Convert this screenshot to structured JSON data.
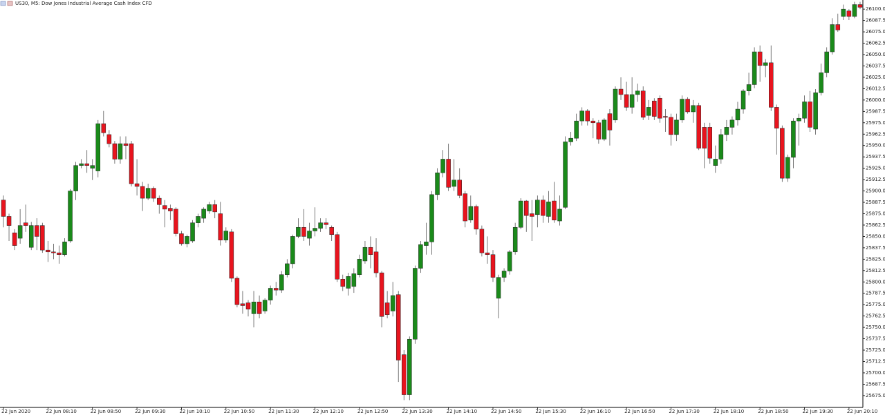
{
  "chart_data": {
    "type": "candlestick",
    "title": "US30, M5: Dow Jones Industrial Average Cash Index CFD",
    "up_color": "#1a8a1a",
    "down_color": "#e8141e",
    "wick_color": "#555555",
    "ylim": [
      25662,
      26110
    ],
    "yticks": [
      {
        "value": 25675,
        "label": "25675.0"
      },
      25687.5,
      {
        "value": 25700,
        "label": "25700.0"
      },
      25712.5,
      {
        "value": 25725,
        "label": "25725.0"
      },
      25737.5,
      {
        "value": 25750,
        "label": "25750.0"
      },
      25762.5,
      {
        "value": 25775,
        "label": "25775.0"
      },
      25787.5,
      {
        "value": 25800,
        "label": "25800.0"
      },
      25812.5,
      {
        "value": 25825,
        "label": "25825.0"
      },
      25837.5,
      {
        "value": 25850,
        "label": "25850.0"
      },
      25862.5,
      {
        "value": 25875,
        "label": "25875.0"
      },
      25887.5,
      {
        "value": 25900,
        "label": "25900.0"
      },
      25912.5,
      {
        "value": 25925,
        "label": "25925.0"
      },
      25937.5,
      {
        "value": 25950,
        "label": "25950.0"
      },
      25962.5,
      {
        "value": 25975,
        "label": "25975.0"
      },
      25987.5,
      {
        "value": 26000,
        "label": "26000.0"
      },
      26012.5,
      {
        "value": 26025,
        "label": "26025.0"
      },
      26037.5,
      {
        "value": 26050,
        "label": "26050.0"
      },
      26062.5,
      {
        "value": 26075,
        "label": "26075.0"
      },
      26087.5,
      {
        "value": 26100,
        "label": "26100.0"
      }
    ],
    "categories": [
      "22 Jun 2020",
      null,
      null,
      null,
      null,
      null,
      null,
      null,
      "22 Jun 08:10",
      null,
      null,
      null,
      null,
      null,
      null,
      null,
      "22 Jun 08:50",
      null,
      null,
      null,
      null,
      null,
      null,
      null,
      "22 Jun 09:30",
      null,
      null,
      null,
      null,
      null,
      null,
      null,
      "22 Jun 10:10",
      null,
      null,
      null,
      null,
      null,
      null,
      null,
      "22 Jun 10:50",
      null,
      null,
      null,
      null,
      null,
      null,
      null,
      "22 Jun 11:30",
      null,
      null,
      null,
      null,
      null,
      null,
      null,
      "22 Jun 12:10",
      null,
      null,
      null,
      null,
      null,
      null,
      null,
      "22 Jun 12:50",
      null,
      null,
      null,
      null,
      null,
      null,
      null,
      "22 Jun 13:30",
      null,
      null,
      null,
      null,
      null,
      null,
      null,
      "22 Jun 14:10",
      null,
      null,
      null,
      null,
      null,
      null,
      null,
      "22 Jun 14:50",
      null,
      null,
      null,
      null,
      null,
      null,
      null,
      "22 Jun 15:30",
      null,
      null,
      null,
      null,
      null,
      null,
      null,
      "22 Jun 16:10",
      null,
      null,
      null,
      null,
      null,
      null,
      null,
      "22 Jun 16:50",
      null,
      null,
      null,
      null,
      null,
      null,
      null,
      "22 Jun 17:30",
      null,
      null,
      null,
      null,
      null,
      null,
      null,
      "22 Jun 18:10",
      null,
      null,
      null,
      null,
      null,
      null,
      null,
      "22 Jun 18:50",
      null,
      null,
      null,
      null,
      null,
      null,
      null,
      "22 Jun 19:30",
      null,
      null,
      null,
      null,
      null,
      null,
      null,
      "22 Jun 20:10",
      null,
      null
    ],
    "open": [
      25890,
      25872,
      25854,
      25848,
      25865,
      25838,
      25862,
      25862,
      25835,
      25833,
      25832,
      25830,
      25845,
      25900,
      25928,
      25930,
      25925,
      25922,
      25974,
      25962,
      25952,
      25935,
      25952,
      25952,
      25908,
      25905,
      25892,
      25903,
      25892,
      25884,
      25881,
      25880,
      25853,
      25842,
      25845,
      25865,
      25870,
      25878,
      25885,
      25875,
      25846,
      25855,
      25804,
      25776,
      25777,
      25765,
      25778,
      25768,
      25780,
      25793,
      25791,
      25808,
      25820,
      25850,
      25860,
      25848,
      25856,
      25859,
      25865,
      25860,
      25852,
      25803,
      25793,
      25795,
      25808,
      25823,
      25838,
      25833,
      25810,
      25777,
      25768,
      25786,
      25720,
      25676,
      25737,
      25815,
      25840,
      25844,
      25896,
      25920,
      25935,
      25905,
      25912,
      25897,
      25868,
      25883,
      25858,
      25832,
      25830,
      25782,
      25805,
      25812,
      25833,
      25860,
      25889,
      25875,
      25874,
      25890,
      25872,
      25889,
      25867,
      25882,
      25954,
      25958,
      25977,
      25988,
      25977,
      25975,
      25957,
      25985,
      25978,
      26012,
      26006,
      25992,
      26006,
      26010,
      25983,
      25999,
      26002,
      25982,
      25981,
      25962,
      25978,
      26001,
      25987,
      25994,
      25970,
      25970,
      25928,
      25935,
      25962,
      25970,
      25978,
      25990,
      26010,
      26017,
      26053,
      26038,
      26041,
      25992,
      25969,
      25914,
      25937,
      25977,
      25980,
      25998,
      25968,
      26008,
      26030,
      26053,
      26083,
      26092,
      26098,
      26092,
      26105
    ],
    "high": [
      25895,
      25875,
      25858,
      25880,
      25885,
      25866,
      25870,
      25865,
      25845,
      25842,
      25840,
      25848,
      25902,
      25932,
      25935,
      25945,
      25935,
      25978,
      25988,
      25967,
      25955,
      25960,
      25960,
      25955,
      25935,
      25910,
      25908,
      25905,
      25895,
      25890,
      25885,
      25882,
      25856,
      25852,
      25868,
      25875,
      25882,
      25888,
      25890,
      25888,
      25860,
      25858,
      25806,
      25790,
      25780,
      25790,
      25785,
      25782,
      25796,
      25800,
      25812,
      25825,
      25852,
      25870,
      25880,
      25865,
      25882,
      25870,
      25870,
      25862,
      25855,
      25808,
      25810,
      25815,
      25830,
      25845,
      25850,
      25848,
      25812,
      25790,
      25800,
      25790,
      25725,
      25740,
      25818,
      25845,
      25865,
      25900,
      25925,
      25945,
      25952,
      25935,
      25925,
      25900,
      25895,
      25885,
      25862,
      25850,
      25835,
      25808,
      25815,
      25835,
      25865,
      25892,
      25890,
      25890,
      25895,
      25895,
      25900,
      25910,
      25895,
      25960,
      25965,
      25985,
      25992,
      25990,
      25980,
      25978,
      25980,
      25990,
      26015,
      26025,
      26020,
      26025,
      26018,
      26015,
      26000,
      26002,
      26005,
      25990,
      25985,
      25985,
      26005,
      26003,
      26000,
      25997,
      25975,
      25975,
      25950,
      25968,
      25978,
      25982,
      25998,
      26012,
      26030,
      26058,
      26060,
      26045,
      26060,
      25995,
      25972,
      25940,
      25980,
      25985,
      26005,
      26010,
      26012,
      26040,
      26058,
      26090,
      26095,
      26105,
      26100,
      26108,
      26108
    ],
    "low": [
      25860,
      25845,
      25835,
      25842,
      25855,
      25835,
      25835,
      25832,
      25822,
      25825,
      25820,
      25828,
      25843,
      25890,
      25925,
      25920,
      25912,
      25915,
      25960,
      25948,
      25930,
      25930,
      25935,
      25905,
      25895,
      25878,
      25890,
      25888,
      25875,
      25860,
      25868,
      25850,
      25840,
      25838,
      25843,
      25860,
      25865,
      25875,
      25870,
      25840,
      25843,
      25800,
      25772,
      25765,
      25762,
      25750,
      25760,
      25765,
      25775,
      25785,
      25788,
      25805,
      25815,
      25848,
      25845,
      25840,
      25850,
      25855,
      25858,
      25845,
      25800,
      25790,
      25785,
      25788,
      25805,
      25820,
      25815,
      25805,
      25750,
      25760,
      25762,
      25690,
      25670,
      25670,
      25732,
      25810,
      25830,
      25830,
      25890,
      25915,
      25900,
      25900,
      25892,
      25860,
      25865,
      25852,
      25828,
      25820,
      25800,
      25760,
      25800,
      25808,
      25830,
      25858,
      25855,
      25845,
      25860,
      25865,
      25865,
      25865,
      25862,
      25880,
      25950,
      25955,
      25972,
      25972,
      25958,
      25952,
      25955,
      25950,
      25975,
      26000,
      25988,
      25985,
      25998,
      25978,
      25978,
      25978,
      25975,
      25965,
      25950,
      25955,
      25975,
      25985,
      25975,
      25945,
      25925,
      25930,
      25920,
      25930,
      25955,
      25962,
      25972,
      25985,
      26005,
      26013,
      26020,
      26025,
      25988,
      25940,
      25910,
      25910,
      25925,
      25950,
      25975,
      25965,
      25962,
      26005,
      26025,
      26050,
      26075,
      26088,
      26088,
      26090,
      26100
    ],
    "close": [
      25872,
      25862,
      25840,
      25862,
      25862,
      25862,
      25850,
      25835,
      25833,
      25832,
      25830,
      25844,
      25900,
      25928,
      25930,
      25928,
      25928,
      25974,
      25964,
      25952,
      25935,
      25952,
      25950,
      25908,
      25905,
      25892,
      25903,
      25892,
      25885,
      25880,
      25878,
      25853,
      25842,
      25850,
      25865,
      25872,
      25880,
      25885,
      25877,
      25846,
      25856,
      25804,
      25775,
      25774,
      25770,
      25778,
      25765,
      25780,
      25793,
      25791,
      25808,
      25820,
      25850,
      25860,
      25850,
      25856,
      25859,
      25865,
      25863,
      25852,
      25803,
      25795,
      25806,
      25809,
      25825,
      25838,
      25830,
      25810,
      25762,
      25764,
      25785,
      25714,
      25676,
      25737,
      25815,
      25841,
      25844,
      25896,
      25920,
      25935,
      25904,
      25912,
      25895,
      25867,
      25883,
      25858,
      25832,
      25830,
      25805,
      25805,
      25812,
      25833,
      25860,
      25889,
      25873,
      25872,
      25890,
      25873,
      25888,
      25868,
      25880,
      25954,
      25958,
      25977,
      25988,
      25977,
      25975,
      25957,
      25978,
      25967,
      26012,
      26006,
      25992,
      26006,
      26010,
      25981,
      25992,
      25982,
      25980,
      25981,
      25962,
      25978,
      26001,
      25987,
      25994,
      25947,
      25947,
      25936,
      25935,
      25962,
      25970,
      25978,
      25990,
      26010,
      26017,
      26053,
      26038,
      26041,
      25992,
      25969,
      25914,
      25937,
      25977,
      25980,
      25998,
      25970,
      26008,
      26030,
      26053,
      26083,
      26077,
      26100,
      26092,
      26105,
      26102
    ]
  }
}
